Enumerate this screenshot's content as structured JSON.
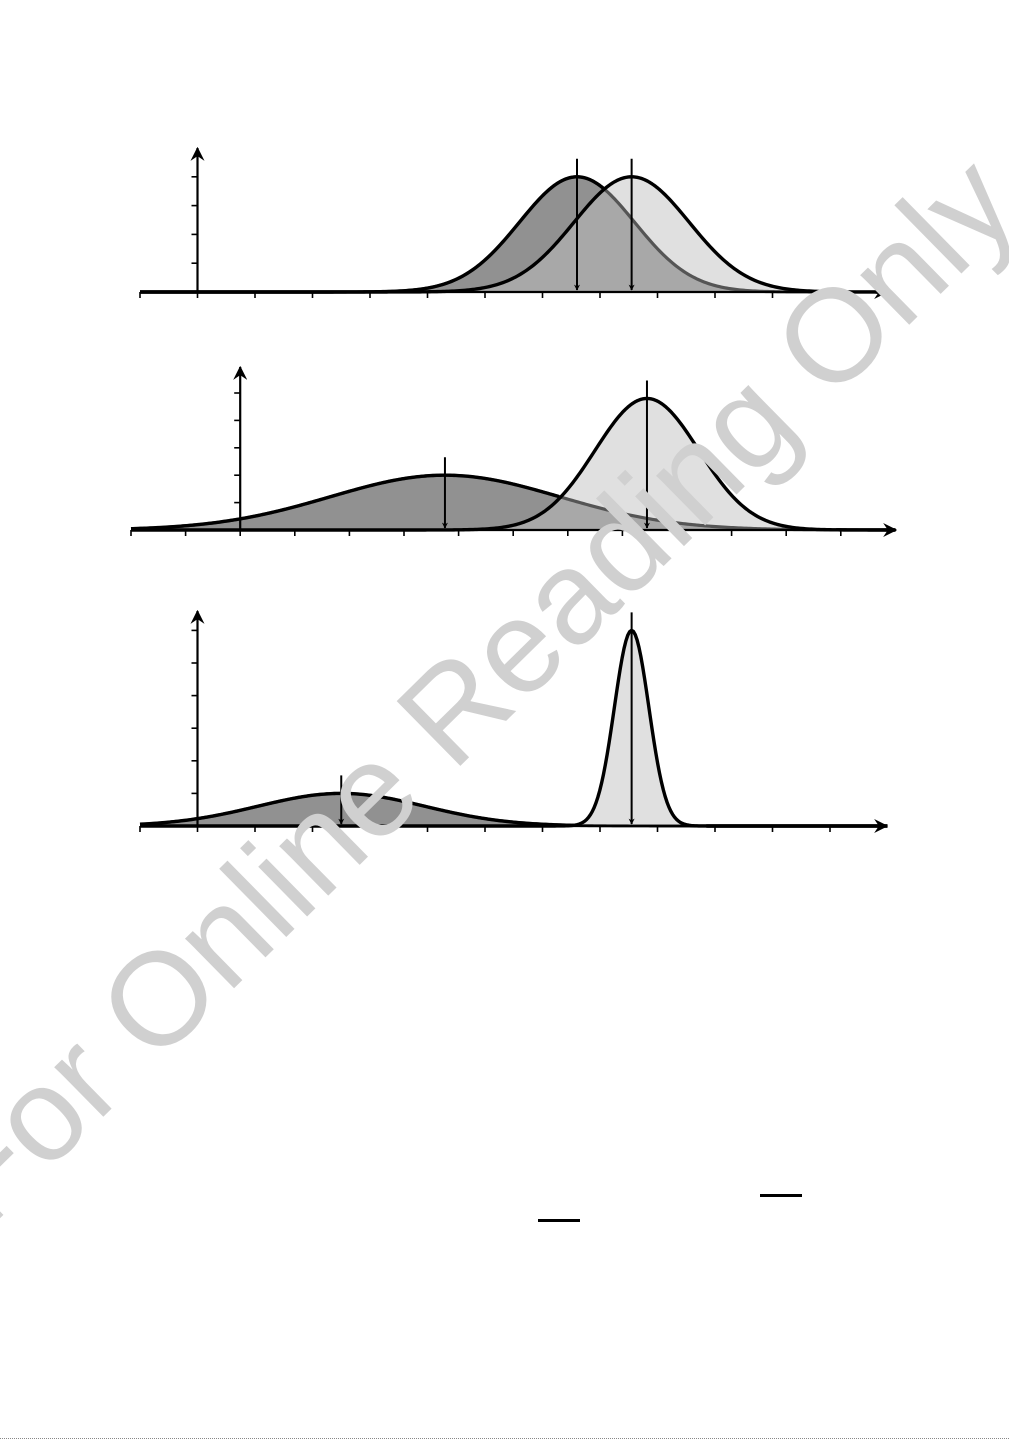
{
  "watermark": {
    "text": "For Online Reading Only"
  },
  "colors": {
    "dark_fill": "#919191",
    "light_fill": "#e0e0e0",
    "overlap_fill": "#a8a8a8",
    "dark_stroke": "#555555",
    "outline": "#000000",
    "watermark": "#d0d0d0"
  },
  "chart_data": [
    {
      "type": "area",
      "title": "",
      "xlabel": "",
      "ylabel": "",
      "xlim": [
        -1,
        12
      ],
      "ylim": [
        0,
        4.2
      ],
      "x_ticks": [
        -1,
        0,
        1,
        2,
        3,
        4,
        5,
        6,
        7,
        8,
        9,
        10,
        11,
        12
      ],
      "y_ticks": [
        1,
        2,
        3,
        4
      ],
      "grid": false,
      "series": [
        {
          "color": "dark",
          "mean": 6.6,
          "sd": 1.0,
          "peak": 4,
          "mean_marker_arrow": true
        },
        {
          "color": "light",
          "mean": 7.55,
          "sd": 1.0,
          "peak": 4,
          "mean_marker_arrow": true
        }
      ]
    },
    {
      "type": "area",
      "title": "",
      "xlabel": "",
      "ylabel": "",
      "xlim": [
        -2,
        12
      ],
      "ylim": [
        0,
        5.5
      ],
      "x_ticks": [
        -2,
        -1,
        0,
        1,
        2,
        3,
        4,
        5,
        6,
        7,
        8,
        9,
        10,
        11,
        12
      ],
      "y_ticks": [
        1,
        2,
        3,
        4,
        5
      ],
      "grid": false,
      "series": [
        {
          "color": "dark",
          "mean": 3.75,
          "sd": 2.1,
          "peak": 2,
          "mean_marker_arrow": true
        },
        {
          "color": "light",
          "mean": 7.45,
          "sd": 0.95,
          "peak": 4.8,
          "mean_marker_arrow": true
        }
      ]
    },
    {
      "type": "area",
      "title": "",
      "xlabel": "",
      "ylabel": "",
      "xlim": [
        -1,
        12
      ],
      "ylim": [
        0,
        6.5
      ],
      "x_ticks": [
        -1,
        0,
        1,
        2,
        3,
        4,
        5,
        6,
        7,
        8,
        9,
        10,
        11,
        12
      ],
      "y_ticks": [
        1,
        2,
        3,
        4,
        5,
        6
      ],
      "grid": false,
      "series": [
        {
          "color": "dark",
          "mean": 2.5,
          "sd": 1.45,
          "peak": 1,
          "mean_marker_arrow": true
        },
        {
          "color": "light",
          "mean": 7.55,
          "sd": 0.3,
          "peak": 6,
          "mean_marker_arrow": true
        }
      ]
    }
  ]
}
